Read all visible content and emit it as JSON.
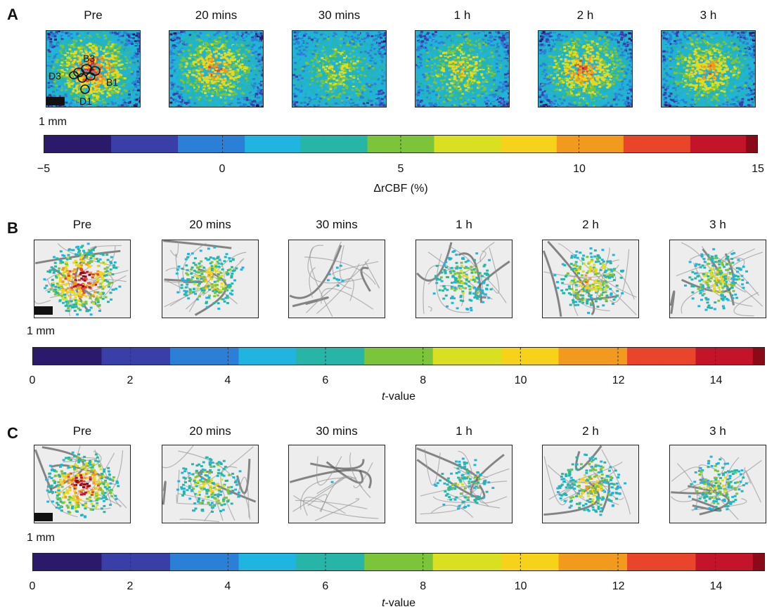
{
  "panels": [
    {
      "label": "A",
      "timepoints": [
        "Pre",
        "20 mins",
        "30 mins",
        "1 h",
        "2 h",
        "3 h"
      ],
      "scale_label": "1 mm",
      "roi_labels": [
        "B3",
        "D3",
        "B1",
        "D1"
      ],
      "colorbar": {
        "ticks": [
          "−5",
          "0",
          "5",
          "10",
          "15"
        ],
        "title_main": "ΔrCBF (%)",
        "title_italic": "",
        "title_suffix": "",
        "range": [
          -5,
          15
        ]
      },
      "activation_levels": [
        0.75,
        0.6,
        0.35,
        0.45,
        0.65,
        0.55
      ]
    },
    {
      "label": "B",
      "timepoints": [
        "Pre",
        "20 mins",
        "30 mins",
        "1 h",
        "2 h",
        "3 h"
      ],
      "scale_label": "1 mm",
      "colorbar": {
        "ticks": [
          "0",
          "2",
          "4",
          "6",
          "8",
          "10",
          "12",
          "14"
        ],
        "title_main": "",
        "title_italic": "t",
        "title_suffix": "-value",
        "range": [
          0,
          15
        ]
      },
      "activation_levels": [
        0.95,
        0.6,
        0.2,
        0.5,
        0.65,
        0.55
      ]
    },
    {
      "label": "C",
      "timepoints": [
        "Pre",
        "20 mins",
        "30 mins",
        "1 h",
        "2 h",
        "3 h"
      ],
      "scale_label": "1 mm",
      "colorbar": {
        "ticks": [
          "0",
          "2",
          "4",
          "6",
          "8",
          "10",
          "12",
          "14"
        ],
        "title_main": "",
        "title_italic": "t",
        "title_suffix": "-value",
        "range": [
          0,
          15
        ]
      },
      "activation_levels": [
        0.9,
        0.55,
        0.15,
        0.4,
        0.6,
        0.5
      ]
    }
  ],
  "colormap": [
    "#2b1a6b",
    "#3a3fa8",
    "#2c7fd6",
    "#20b4e0",
    "#27b5a8",
    "#7cc43a",
    "#d9e021",
    "#f7d21a",
    "#f29a1e",
    "#e8452a",
    "#c4142a",
    "#8a0a1a"
  ]
}
